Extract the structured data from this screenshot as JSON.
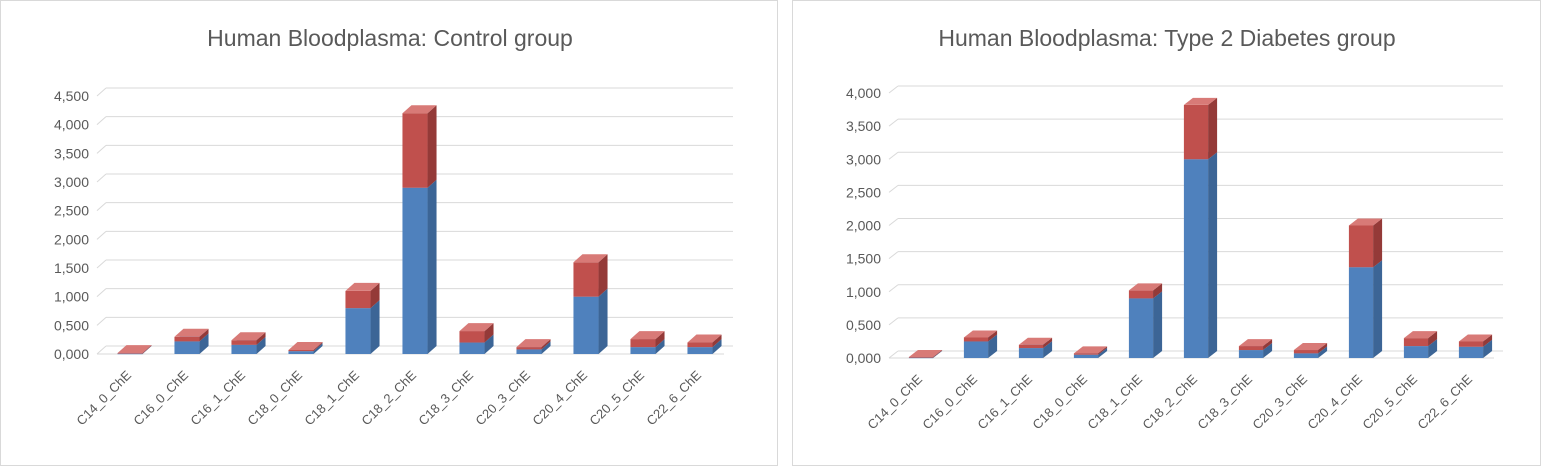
{
  "colors": {
    "series_bottom": "#4f81bd",
    "series_bottom_side": "#3c6596",
    "series_bottom_top": "#7aa1d1",
    "series_top": "#c0504d",
    "series_top_side": "#943a38",
    "series_top_top": "#d87a77",
    "gridline": "#d9d9d9",
    "text": "#595959"
  },
  "chart_data": [
    {
      "type": "bar",
      "stacked": true,
      "three_d": true,
      "title": "Human Bloodplasma: Control group",
      "categories": [
        "C14_0_ChE",
        "C16_0_ChE",
        "C16_1_ChE",
        "C18_0_ChE",
        "C18_1_ChE",
        "C18_2_ChE",
        "C18_3_ChE",
        "C20_3_ChE",
        "C20_4_ChE",
        "C20_5_ChE",
        "C22_6_ChE"
      ],
      "series": [
        {
          "values": [
            0.005,
            0.22,
            0.16,
            0.05,
            0.8,
            2.9,
            0.2,
            0.08,
            1.0,
            0.12,
            0.12
          ]
        },
        {
          "values": [
            0.01,
            0.08,
            0.08,
            0.02,
            0.3,
            1.3,
            0.2,
            0.04,
            0.6,
            0.14,
            0.08
          ]
        }
      ],
      "yticks": [
        "0,000",
        "0,500",
        "1,000",
        "1,500",
        "2,000",
        "2,500",
        "3,000",
        "3,500",
        "4,000",
        "4,500"
      ],
      "ylim": [
        0,
        4.5
      ],
      "grid": true
    },
    {
      "type": "bar",
      "stacked": true,
      "three_d": true,
      "title": "Human Bloodplasma: Type 2 Diabetes group",
      "categories": [
        "C14_0_ChE",
        "C16_0_ChE",
        "C16_1_ChE",
        "C18_0_ChE",
        "C18_1_ChE",
        "C18_2_ChE",
        "C18_3_ChE",
        "C20_3_ChE",
        "C20_4_ChE",
        "C20_5_ChE",
        "C22_6_ChE"
      ],
      "series": [
        {
          "values": [
            0.005,
            0.25,
            0.15,
            0.05,
            0.9,
            3.0,
            0.12,
            0.07,
            1.37,
            0.18,
            0.17
          ]
        },
        {
          "values": [
            0.01,
            0.06,
            0.05,
            0.02,
            0.12,
            0.82,
            0.06,
            0.05,
            0.63,
            0.12,
            0.08
          ]
        }
      ],
      "yticks": [
        "0,000",
        "0,500",
        "1,000",
        "1,500",
        "2,000",
        "2,500",
        "3,000",
        "3,500",
        "4,000"
      ],
      "ylim": [
        0,
        4.0
      ],
      "grid": true
    }
  ]
}
